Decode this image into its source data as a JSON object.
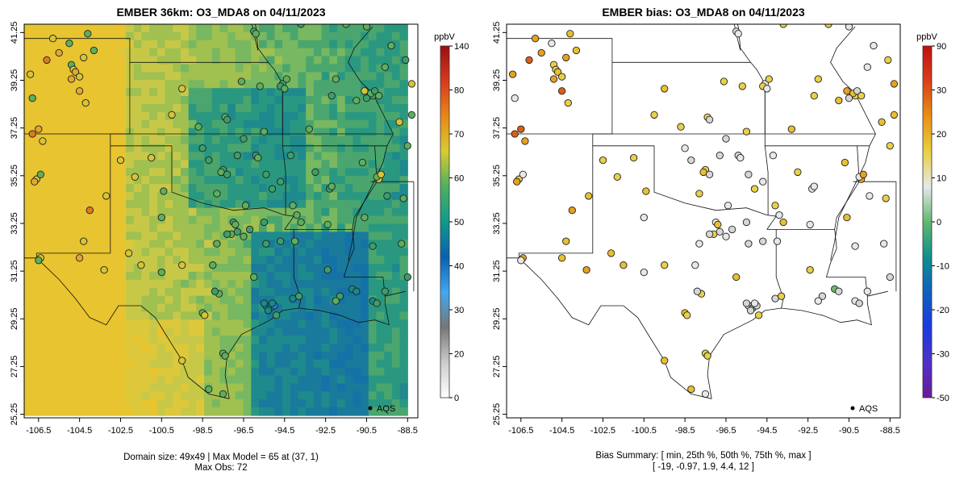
{
  "chart_data": [
    {
      "type": "map",
      "title": "EMBER 36km: O3_MDA8 on 04/11/2023",
      "x_ticks": [
        "-106.5",
        "-104.5",
        "-102.5",
        "-100.5",
        "-98.5",
        "-96.5",
        "-94.5",
        "-92.5",
        "-90.5",
        "-88.5"
      ],
      "y_ticks": [
        "25.25",
        "27.25",
        "29.25",
        "31.25",
        "33.25",
        "35.25",
        "37.25",
        "39.25",
        "41.25"
      ],
      "lon_range": [
        -107.2,
        -88.0
      ],
      "lat_range": [
        25.1,
        41.6
      ],
      "legend_label": "AQS",
      "colorbar": {
        "unit": "ppbV",
        "ticks": [
          "0",
          "20",
          "30",
          "40",
          "50",
          "60",
          "70",
          "80",
          "140"
        ],
        "values": [
          0,
          20,
          30,
          40,
          50,
          60,
          70,
          80,
          140
        ],
        "colors": [
          "#ffffff",
          "#cccccc",
          "#777777",
          "#42a8f0",
          "#0a60b0",
          "#129a8a",
          "#4db060",
          "#d8cc30",
          "#e88818",
          "#d83a20",
          "#9a1010"
        ]
      },
      "captions": [
        "Domain size: 49x49 | Max Model = 65 at (37, 1)",
        "Max Obs: 72"
      ]
    },
    {
      "type": "map",
      "title": "EMBER bias: O3_MDA8 on 04/11/2023",
      "x_ticks": [
        "-106.5",
        "-104.5",
        "-102.5",
        "-100.5",
        "-98.5",
        "-96.5",
        "-94.5",
        "-92.5",
        "-90.5",
        "-88.5"
      ],
      "y_ticks": [
        "25.25",
        "27.25",
        "29.25",
        "31.25",
        "33.25",
        "35.25",
        "37.25",
        "39.25",
        "41.25"
      ],
      "lon_range": [
        -107.2,
        -88.0
      ],
      "lat_range": [
        25.1,
        41.6
      ],
      "legend_label": "AQS",
      "colorbar": {
        "unit": "ppbV",
        "ticks": [
          "-50",
          "-30",
          "-20",
          "-10",
          "0",
          "10",
          "20",
          "30",
          "90"
        ],
        "values": [
          -50,
          -30,
          -20,
          -10,
          0,
          10,
          20,
          30,
          90
        ],
        "colors": [
          "#6a1b9a",
          "#5030c8",
          "#1a3ae0",
          "#1060c0",
          "#10908c",
          "#60b870",
          "#e8e8e8",
          "#e8d040",
          "#e89018",
          "#d84018",
          "#c01010"
        ]
      },
      "captions": [
        "Bias Summary: [ min, 25th %, 50th %, 75th %, max ]",
        "[ -19,   -0.97,   1.9,   4.4,   12 ]"
      ]
    }
  ]
}
